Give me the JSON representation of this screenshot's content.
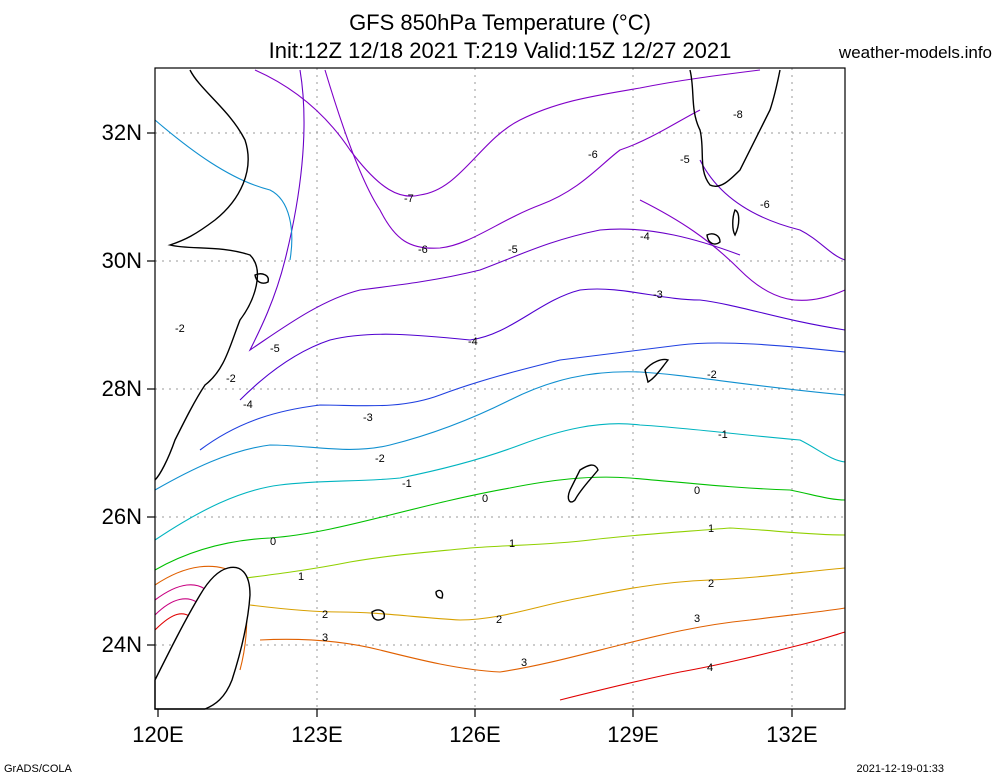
{
  "title_line1": "GFS 850hPa Temperature (°C)",
  "title_line2": "Init:12Z 12/18 2021 T:219 Valid:15Z 12/27 2021",
  "site": "weather-models.info",
  "footer_left": "GrADS/COLA",
  "footer_right": "2021-12-19-01:33",
  "axes": {
    "lon_labels": [
      "120E",
      "123E",
      "126E",
      "129E",
      "132E"
    ],
    "lat_labels": [
      "32N",
      "30N",
      "28N",
      "26N",
      "24N"
    ]
  },
  "contour_colors": {
    "-8": "#8000c8",
    "-7": "#8000c8",
    "-6": "#8000c8",
    "-5": "#6a00c8",
    "-4": "#5000d0",
    "-3": "#2040e0",
    "-2": "#1090d0",
    "-1": "#00b4c0",
    "0": "#00c000",
    "1": "#90d000",
    "2": "#d8a000",
    "3": "#e06000",
    "4": "#e00000",
    "5": "#c80080"
  },
  "contour_labels": [
    "-8",
    "-7",
    "-6",
    "-6",
    "-6",
    "-5",
    "-5",
    "-5",
    "-4",
    "-4",
    "-4",
    "-3",
    "-3",
    "-2",
    "-2",
    "-2",
    "-2",
    "-1",
    "-1",
    "0",
    "0",
    "0",
    "1",
    "1",
    "1",
    "2",
    "2",
    "2",
    "3",
    "3",
    "3",
    "4"
  ]
}
